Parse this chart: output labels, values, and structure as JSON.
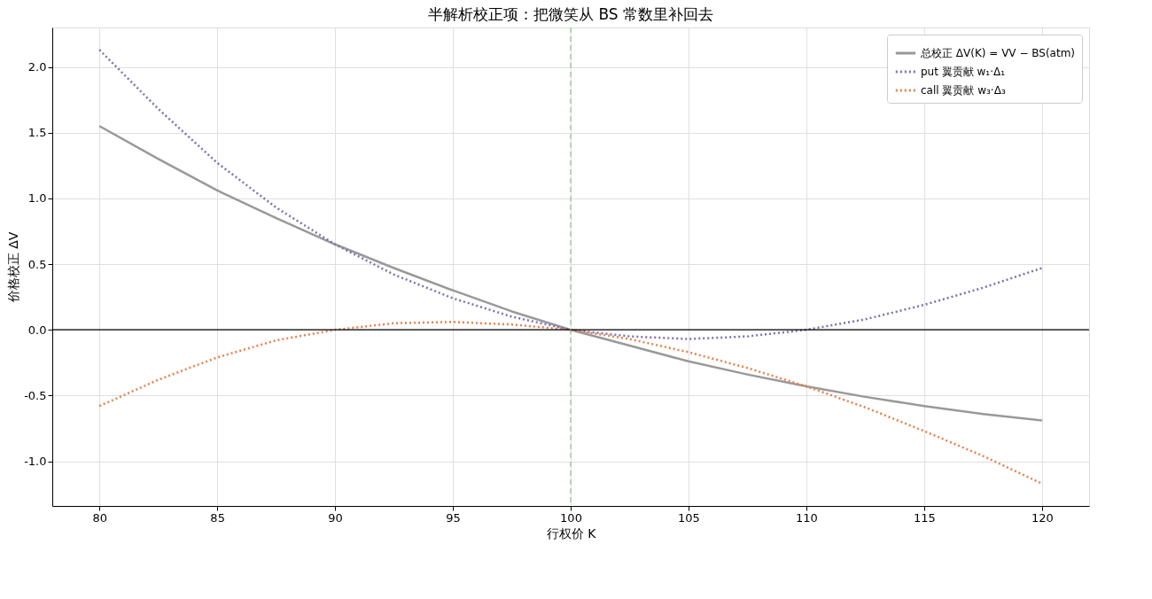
{
  "chart_data": {
    "type": "line",
    "title": "半解析校正项：把微笑从 BS 常数里补回去",
    "xlabel": "行权价 K",
    "ylabel": "价格校正 ΔV",
    "x": [
      80,
      82.5,
      85,
      87.5,
      90,
      92.5,
      95,
      97.5,
      100,
      102.5,
      105,
      107.5,
      110,
      112.5,
      115,
      117.5,
      120
    ],
    "series": [
      {
        "name": "总校正 ΔV(K) = VV − BS(atm)",
        "color": "#999999",
        "line_style": "solid",
        "values": [
          1.55,
          1.3,
          1.06,
          0.85,
          0.65,
          0.47,
          0.3,
          0.14,
          0,
          -0.12,
          -0.24,
          -0.34,
          -0.43,
          -0.51,
          -0.58,
          -0.64,
          -0.69
        ]
      },
      {
        "name": "put 翼贡献 w₁·Δ₁",
        "color": "#7f6fb3",
        "line_style": "dotted",
        "values": [
          2.13,
          1.68,
          1.27,
          0.93,
          0.65,
          0.42,
          0.24,
          0.1,
          0,
          -0.05,
          -0.07,
          -0.05,
          0.0,
          0.08,
          0.19,
          0.32,
          0.47
        ]
      },
      {
        "name": "call 翼贡献 w₃·Δ₃",
        "color": "#e8804a",
        "line_style": "dotted",
        "values": [
          -0.58,
          -0.38,
          -0.21,
          -0.08,
          0.0,
          0.05,
          0.06,
          0.04,
          0,
          -0.07,
          -0.17,
          -0.29,
          -0.43,
          -0.59,
          -0.77,
          -0.96,
          -1.17
        ]
      }
    ],
    "xlim": [
      78,
      122
    ],
    "xticks": [
      80,
      85,
      90,
      95,
      100,
      105,
      110,
      115,
      120
    ],
    "ylim": [
      -1.34,
      2.3
    ],
    "yticks": [
      {
        "value": -1,
        "label": "-1.0"
      },
      {
        "value": -0.5,
        "label": "-0.5"
      },
      {
        "value": 0,
        "label": "0.0"
      },
      {
        "value": 0.5,
        "label": "0.5"
      },
      {
        "value": 1,
        "label": "1.0"
      },
      {
        "value": 1.5,
        "label": "1.5"
      },
      {
        "value": 2,
        "label": "2.0"
      }
    ],
    "ref_lines": [
      {
        "axis": "y",
        "value": 0,
        "color": "#000000",
        "line_style": "solid"
      },
      {
        "axis": "x",
        "value": 100,
        "color": "#8fbf8f",
        "line_style": "dashed"
      }
    ],
    "grid": true,
    "legend": "top right",
    "marker": "none"
  }
}
